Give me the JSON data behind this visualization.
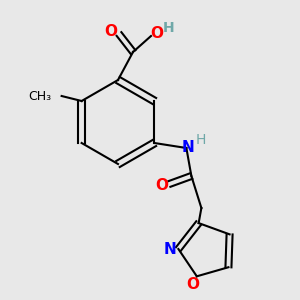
{
  "background_color": "#e8e8e8",
  "atom_colors": {
    "C": "#000000",
    "H": "#6fa8a8",
    "N": "#0000ff",
    "O": "#ff0000"
  },
  "figsize": [
    3.0,
    3.0
  ],
  "dpi": 100
}
